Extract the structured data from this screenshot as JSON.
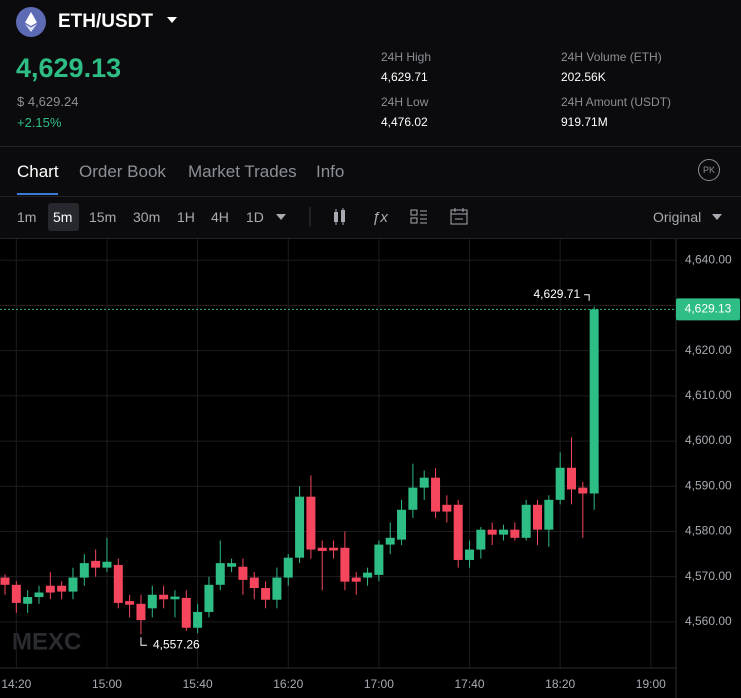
{
  "header": {
    "pair": "ETH/USDT",
    "price": "4,629.13",
    "price_usd": "$ 4,629.24",
    "change": "+2.15%",
    "stats": [
      {
        "label": "24H High",
        "value": "4,629.71"
      },
      {
        "label": "24H Low",
        "value": "4,476.02"
      },
      {
        "label": "24H Volume (ETH)",
        "value": "202.56K"
      },
      {
        "label": "24H Amount (USDT)",
        "value": "919.71M"
      }
    ]
  },
  "tabs": [
    "Chart",
    "Order Book",
    "Market Trades",
    "Info"
  ],
  "badge": "PK",
  "intervals": [
    "1m",
    "5m",
    "15m",
    "30m",
    "1H",
    "4H",
    "1D"
  ],
  "price_mode": "Original",
  "chart_data": {
    "type": "candlestick",
    "watermark": "MEXC",
    "up_color": "#2ebd85",
    "down_color": "#f6465d",
    "categories": [
      null,
      "14:20",
      null,
      null,
      null,
      null,
      null,
      null,
      null,
      "15:00",
      null,
      null,
      null,
      null,
      null,
      null,
      null,
      "15:40",
      null,
      null,
      null,
      null,
      null,
      null,
      null,
      "16:20",
      null,
      null,
      null,
      null,
      null,
      null,
      null,
      "17:00",
      null,
      null,
      null,
      null,
      null,
      null,
      null,
      "17:40",
      null,
      null,
      null,
      null,
      null,
      null,
      null,
      "18:20",
      null,
      null,
      null,
      null,
      null,
      null,
      null,
      "19:00"
    ],
    "open": [
      4569.8,
      4568.2,
      4564.0,
      4565.5,
      4568.0,
      4568.0,
      4566.7,
      4569.8,
      4573.5,
      4572.0,
      4572.6,
      4564.6,
      4564.0,
      4563.0,
      4566.0,
      4565.0,
      4565.3,
      4558.7,
      4562.2,
      4568.2,
      4572.2,
      4572.2,
      4569.8,
      4567.5,
      4564.9,
      4569.8,
      4574.2,
      4587.7,
      4576.4,
      4576.4,
      4576.4,
      4569.8,
      4569.8,
      4570.4,
      4577.1,
      4578.2,
      4584.8,
      4589.7,
      4591.9,
      4585.9,
      4585.9,
      4573.7,
      4576.0,
      4580.4,
      4579.3,
      4580.4,
      4578.6,
      4585.9,
      4580.4,
      4587.0,
      4594.1,
      4589.7,
      4588.4,
      null,
      null,
      null,
      null,
      null
    ],
    "high": [
      4570.5,
      4569.0,
      4567.0,
      4568.0,
      4571.0,
      4569.0,
      4572.0,
      4575.0,
      4576.0,
      4578.6,
      4574.0,
      4566.0,
      4566.0,
      4568.0,
      4568.0,
      4567.0,
      4567.0,
      4564.0,
      4570.0,
      4578.0,
      4574.0,
      4574.0,
      4571.0,
      4569.0,
      4572.0,
      4575.0,
      4590.0,
      4592.4,
      4578.0,
      4578.0,
      4580.0,
      4571.0,
      4572.0,
      4578.0,
      4582.0,
      4587.0,
      4595.0,
      4593.5,
      4594.0,
      4588.0,
      4587.0,
      4578.0,
      4581.0,
      4582.0,
      4581.5,
      4582.0,
      4587.0,
      4587.0,
      4588.0,
      4597.5,
      4600.8,
      4591.0,
      4629.71,
      null,
      null,
      null,
      null,
      null
    ],
    "low": [
      4566.0,
      4562.0,
      4562.0,
      4564.0,
      4565.0,
      4565.0,
      4565.0,
      4568.0,
      4570.0,
      4571.0,
      4563.0,
      4561.0,
      4557.26,
      4561.0,
      4563.0,
      4561.0,
      4558.0,
      4557.5,
      4561.0,
      4567.0,
      4571.0,
      4566.0,
      4565.0,
      4563.0,
      4563.0,
      4568.0,
      4573.0,
      4574.0,
      4567.0,
      4574.0,
      4567.0,
      4566.0,
      4568.0,
      4569.0,
      4575.0,
      4577.0,
      4583.0,
      4587.0,
      4583.0,
      4582.0,
      4572.0,
      4572.0,
      4574.0,
      4577.0,
      4578.0,
      4578.0,
      4578.0,
      4577.0,
      4576.6,
      4586.0,
      4586.0,
      4578.6,
      4584.8,
      null,
      null,
      null,
      null,
      null
    ],
    "close": [
      4568.2,
      4564.2,
      4565.5,
      4566.5,
      4566.5,
      4566.7,
      4569.8,
      4573.0,
      4572.0,
      4573.3,
      4564.2,
      4563.8,
      4560.4,
      4566.0,
      4565.0,
      4565.6,
      4558.7,
      4562.2,
      4568.2,
      4573.0,
      4573.0,
      4569.3,
      4567.5,
      4564.9,
      4569.8,
      4574.2,
      4587.7,
      4576.0,
      4575.7,
      4575.8,
      4568.9,
      4568.9,
      4570.9,
      4577.1,
      4578.6,
      4584.8,
      4589.7,
      4591.9,
      4584.4,
      4584.4,
      4573.7,
      4576.0,
      4580.4,
      4579.3,
      4580.4,
      4578.6,
      4585.9,
      4580.4,
      4587.0,
      4594.1,
      4589.3,
      4588.4,
      4629.13,
      null,
      null,
      null,
      null,
      null
    ],
    "high_label": "4,629.71",
    "low_label": "4,557.26",
    "last_price": {
      "value": 4629.13,
      "label": "4,629.13"
    },
    "ylim": [
      4549.8,
      4644.7
    ],
    "yticks": [
      {
        "value": 4560,
        "label": "4,560.00"
      },
      {
        "value": 4570,
        "label": "4,570.00"
      },
      {
        "value": 4580,
        "label": "4,580.00"
      },
      {
        "value": 4590,
        "label": "4,590.00"
      },
      {
        "value": 4600,
        "label": "4,600.00"
      },
      {
        "value": 4610,
        "label": "4,610.00"
      },
      {
        "value": 4620,
        "label": "4,620.00"
      },
      {
        "value": 4630,
        "label": "4,630.00"
      },
      {
        "value": 4640,
        "label": "4,640.00"
      }
    ],
    "grid": true
  }
}
